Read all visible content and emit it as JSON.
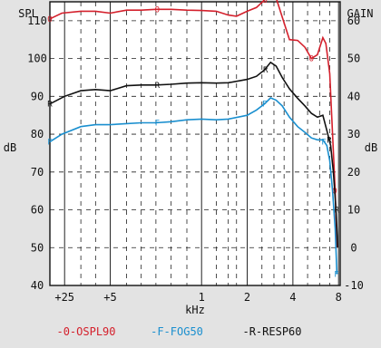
{
  "chart_data": {
    "type": "line",
    "title": "",
    "xlabel": "kHz",
    "left_axis": {
      "title": "SPL",
      "unit": "dB",
      "ylim": [
        40,
        115
      ],
      "ticks": [
        "110",
        "100",
        "90",
        "80",
        "70",
        "60",
        "50",
        "40"
      ],
      "tick_values": [
        110,
        100,
        90,
        80,
        70,
        60,
        50,
        40
      ]
    },
    "right_axis": {
      "title": "GAIN",
      "unit": "dB",
      "ylim": [
        -10,
        65
      ],
      "ticks": [
        "60",
        "50",
        "40",
        "30",
        "20",
        "10",
        "0",
        "-10"
      ],
      "tick_values": [
        60,
        50,
        40,
        30,
        20,
        10,
        0,
        -10
      ]
    },
    "x_ticks": [
      "+25",
      "+5",
      "1",
      "2",
      "4",
      "8"
    ],
    "x_tick_values": [
      0.125,
      0.25,
      1,
      2,
      4,
      8
    ],
    "xlim": [
      0.1,
      8.2
    ],
    "x_scale": "log",
    "grid": true,
    "series": [
      {
        "name": "OSPL90",
        "legend": "-0-OSPL90",
        "marker": "O",
        "color": "#d4202c",
        "axis": "left",
        "points": [
          [
            0.1,
            110.5
          ],
          [
            0.12,
            112
          ],
          [
            0.16,
            112.5
          ],
          [
            0.2,
            112.5
          ],
          [
            0.25,
            112
          ],
          [
            0.32,
            112.8
          ],
          [
            0.4,
            112.8
          ],
          [
            0.5,
            113
          ],
          [
            0.63,
            113
          ],
          [
            0.8,
            112.8
          ],
          [
            1.0,
            112.7
          ],
          [
            1.25,
            112.5
          ],
          [
            1.5,
            111.5
          ],
          [
            1.7,
            111.2
          ],
          [
            2.0,
            112.5
          ],
          [
            2.3,
            113.5
          ],
          [
            2.6,
            115.5
          ],
          [
            2.85,
            117
          ],
          [
            3.1,
            116
          ],
          [
            3.4,
            111
          ],
          [
            3.8,
            105
          ],
          [
            4.3,
            104.8
          ],
          [
            4.8,
            103
          ],
          [
            5.3,
            100
          ],
          [
            5.8,
            101
          ],
          [
            6.3,
            105.5
          ],
          [
            6.6,
            104
          ],
          [
            7.0,
            96
          ],
          [
            7.3,
            80
          ],
          [
            7.6,
            65
          ],
          [
            7.8,
            50
          ]
        ],
        "labels": [
          [
            0.1,
            110.5
          ],
          [
            0.51,
            113
          ],
          [
            2.62,
            115.5
          ],
          [
            5.3,
            100
          ],
          [
            7.55,
            65
          ]
        ]
      },
      {
        "name": "RESP60",
        "legend": "-R-RESP60",
        "marker": "R",
        "color": "#111111",
        "axis": "left",
        "points": [
          [
            0.1,
            88
          ],
          [
            0.125,
            90
          ],
          [
            0.16,
            91.5
          ],
          [
            0.2,
            91.8
          ],
          [
            0.25,
            91.5
          ],
          [
            0.32,
            92.8
          ],
          [
            0.4,
            93
          ],
          [
            0.5,
            93
          ],
          [
            0.63,
            93.2
          ],
          [
            0.8,
            93.5
          ],
          [
            1.0,
            93.6
          ],
          [
            1.25,
            93.5
          ],
          [
            1.5,
            93.6
          ],
          [
            2.0,
            94.5
          ],
          [
            2.3,
            95.3
          ],
          [
            2.6,
            97
          ],
          [
            2.85,
            99
          ],
          [
            3.1,
            98
          ],
          [
            3.4,
            95
          ],
          [
            3.8,
            92
          ],
          [
            4.3,
            89.5
          ],
          [
            4.8,
            87.5
          ],
          [
            5.3,
            85.5
          ],
          [
            5.8,
            84.5
          ],
          [
            6.3,
            85
          ],
          [
            6.7,
            81
          ],
          [
            7.1,
            77
          ],
          [
            7.4,
            70
          ],
          [
            7.7,
            60
          ],
          [
            7.9,
            50
          ]
        ],
        "labels": [
          [
            0.1,
            88
          ],
          [
            0.51,
            93
          ],
          [
            2.64,
            97
          ],
          [
            6.95,
            78.5
          ],
          [
            7.8,
            60
          ]
        ]
      },
      {
        "name": "FOG50",
        "legend": "-F-FOG50",
        "marker": "F",
        "color": "#1a8fcf",
        "axis": "left",
        "points": [
          [
            0.1,
            78
          ],
          [
            0.12,
            80
          ],
          [
            0.16,
            82
          ],
          [
            0.2,
            82.5
          ],
          [
            0.25,
            82.5
          ],
          [
            0.32,
            82.8
          ],
          [
            0.4,
            83
          ],
          [
            0.5,
            83
          ],
          [
            0.63,
            83.3
          ],
          [
            0.8,
            83.8
          ],
          [
            1.0,
            84
          ],
          [
            1.25,
            83.8
          ],
          [
            1.5,
            84
          ],
          [
            2.0,
            85
          ],
          [
            2.3,
            86.4
          ],
          [
            2.6,
            88
          ],
          [
            2.85,
            89.6
          ],
          [
            3.1,
            89
          ],
          [
            3.4,
            87.5
          ],
          [
            3.8,
            84.5
          ],
          [
            4.3,
            82
          ],
          [
            4.8,
            80.5
          ],
          [
            5.3,
            79
          ],
          [
            5.8,
            78.5
          ],
          [
            6.3,
            78.5
          ],
          [
            6.7,
            77
          ],
          [
            7.0,
            73
          ],
          [
            7.3,
            65
          ],
          [
            7.6,
            55
          ],
          [
            7.8,
            43
          ]
        ],
        "labels": [
          [
            0.1,
            78
          ],
          [
            0.51,
            83
          ],
          [
            2.6,
            88
          ],
          [
            6.4,
            78
          ],
          [
            7.75,
            43
          ]
        ]
      }
    ]
  },
  "colors": {
    "background": "#e3e3e3",
    "plot": "#ffffff"
  }
}
